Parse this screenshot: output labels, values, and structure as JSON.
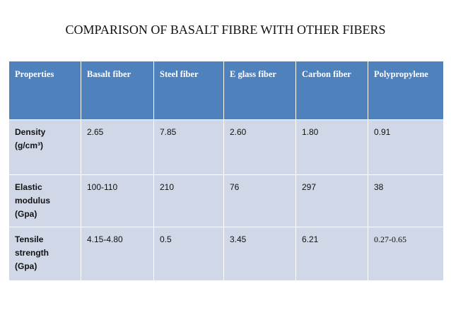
{
  "title": "COMPARISON OF BASALT FIBRE WITH OTHER FIBERS",
  "table": {
    "headers": [
      "Properties",
      "Basalt fiber",
      "Steel fiber",
      "E  glass fiber",
      "Carbon fiber",
      "Polypropylene"
    ],
    "rows": [
      {
        "property_lines": [
          "Density",
          "(g/cm³)"
        ],
        "values": [
          "2.65",
          "7.85",
          "2.60",
          "1.80",
          "0.91"
        ]
      },
      {
        "property_lines": [
          "Elastic",
          "modulus",
          "(Gpa)"
        ],
        "values": [
          "100-110",
          "210",
          "76",
          "297",
          "38"
        ]
      },
      {
        "property_lines": [
          "Tensile",
          "strength",
          "(Gpa)"
        ],
        "values": [
          "4.15-4.80",
          "0.5",
          "3.45",
          "6.21",
          "0.27-0.65"
        ]
      }
    ]
  },
  "colors": {
    "header_bg": "#4f81bd",
    "body_bg": "#d0d8e8",
    "header_text": "#ffffff"
  }
}
